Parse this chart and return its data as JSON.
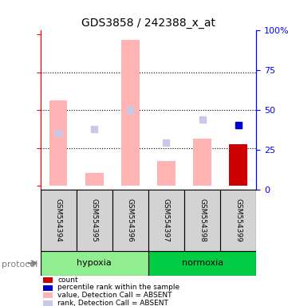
{
  "title": "GDS3858 / 242388_x_at",
  "samples": [
    "GSM554394",
    "GSM554395",
    "GSM554396",
    "GSM554397",
    "GSM554398",
    "GSM554399"
  ],
  "ylim_left": [
    38,
    122
  ],
  "ylim_right": [
    0,
    100
  ],
  "yticks_left": [
    40,
    60,
    80,
    100,
    120
  ],
  "yticks_right": [
    0,
    25,
    50,
    75,
    100
  ],
  "ytick_labels_right": [
    "0",
    "25",
    "50",
    "75",
    "100%"
  ],
  "pink_bar_values": [
    85,
    47,
    117,
    53,
    65,
    62
  ],
  "pink_bar_base": 40,
  "pink_bar_color": "#ffb3b3",
  "lightblue_square_values": [
    68,
    70,
    80,
    63,
    75,
    72
  ],
  "lightblue_square_color": "#c8c8e8",
  "darkred_bar_samples": [
    5
  ],
  "darkred_bar_values": [
    62
  ],
  "darkred_bar_base": 40,
  "darkred_bar_color": "#cc0000",
  "darkblue_square_samples": [
    5
  ],
  "darkblue_square_values": [
    72
  ],
  "darkblue_square_color": "#0000cc",
  "groups": [
    {
      "label": "hypoxia",
      "samples": [
        0,
        1,
        2
      ],
      "color": "#90ee90"
    },
    {
      "label": "normoxia",
      "samples": [
        3,
        4,
        5
      ],
      "color": "#00cc44"
    }
  ],
  "protocol_label": "protocol",
  "bar_width": 0.4,
  "background_color": "#ffffff",
  "plot_bg_color": "#ffffff",
  "grid_color": "#000000",
  "label_bg_color": "#d3d3d3",
  "legend_items": [
    {
      "label": "count",
      "color": "#cc0000",
      "marker": "s"
    },
    {
      "label": "percentile rank within the sample",
      "color": "#0000cc",
      "marker": "s"
    },
    {
      "label": "value, Detection Call = ABSENT",
      "color": "#ffb3b3",
      "marker": "s"
    },
    {
      "label": "rank, Detection Call = ABSENT",
      "color": "#c8c8e8",
      "marker": "s"
    }
  ]
}
